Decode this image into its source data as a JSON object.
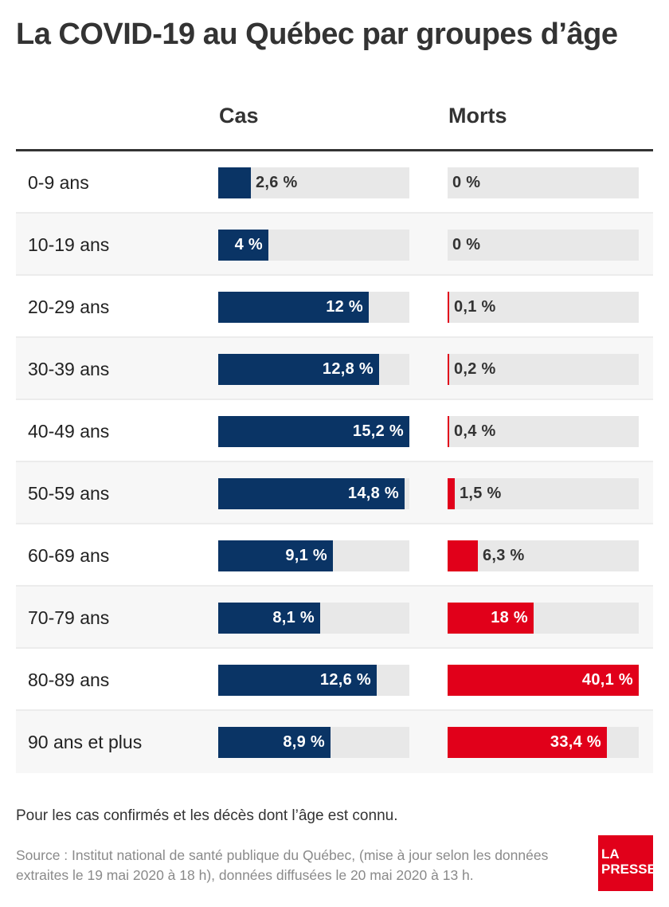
{
  "title": "La COVID-19 au Québec par groupes d’âge",
  "columns": {
    "cas": "Cas",
    "morts": "Morts"
  },
  "note": "Pour les cas confirmés et les décès dont l’âge est connu.",
  "source": "Source : Institut national de santé publique du Québec, (mise à jour selon les données extraites le 19 mai 2020 à 18 h), données diffusées le 20 mai 2020 à 13 h.",
  "logo": {
    "line1": "LA",
    "line2": "PRESSE"
  },
  "colors": {
    "cas": "#0a3465",
    "morts": "#e1001a",
    "track": "#e8e8e8"
  },
  "chart_data": {
    "type": "bar",
    "orientation": "horizontal",
    "categories": [
      "0-9 ans",
      "10-19 ans",
      "20-29 ans",
      "30-39 ans",
      "40-49 ans",
      "50-59 ans",
      "60-69 ans",
      "70-79 ans",
      "80-89 ans",
      "90 ans et plus"
    ],
    "series": [
      {
        "name": "Cas",
        "values": [
          2.6,
          4,
          12,
          12.8,
          15.2,
          14.8,
          9.1,
          8.1,
          12.6,
          8.9
        ],
        "labels": [
          "2,6 %",
          "4 %",
          "12 %",
          "12,8 %",
          "15,2 %",
          "14,8 %",
          "9,1 %",
          "8,1 %",
          "12,6 %",
          "8,9 %"
        ],
        "max": 15.2
      },
      {
        "name": "Morts",
        "values": [
          0,
          0,
          0.1,
          0.2,
          0.4,
          1.5,
          6.3,
          18,
          40.1,
          33.4
        ],
        "labels": [
          "0 %",
          "0 %",
          "0,1 %",
          "0,2 %",
          "0,4 %",
          "1,5 %",
          "6,3 %",
          "18 %",
          "40,1 %",
          "33,4 %"
        ],
        "max": 40.1
      }
    ],
    "title": "La COVID-19 au Québec par groupes d’âge",
    "xlabel": "",
    "ylabel": ""
  }
}
